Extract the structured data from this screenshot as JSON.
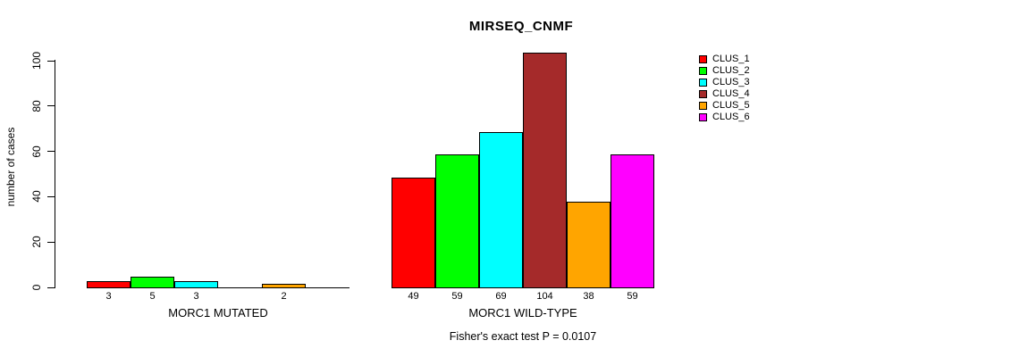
{
  "chart_data": {
    "type": "bar",
    "title": "MIRSEQ_CNMF",
    "ylabel": "number of cases",
    "xlabel": "",
    "ylim": [
      0,
      100
    ],
    "yticks": [
      0,
      20,
      40,
      60,
      80,
      100
    ],
    "grid": false,
    "legend_position": "right",
    "series_labels": [
      "CLUS_1",
      "CLUS_2",
      "CLUS_3",
      "CLUS_4",
      "CLUS_5",
      "CLUS_6"
    ],
    "colors": [
      "#FF0000",
      "#00FF00",
      "#00FFFF",
      "#A52A2A",
      "#FFA500",
      "#FF00FF"
    ],
    "groups": [
      {
        "label": "MORC1 MUTATED",
        "values": [
          3,
          5,
          3,
          0,
          2,
          0
        ]
      },
      {
        "label": "MORC1 WILD-TYPE",
        "values": [
          49,
          59,
          69,
          104,
          38,
          59
        ]
      }
    ],
    "bar_value_labels": [
      [
        "3",
        "5",
        "3",
        "",
        "2",
        ""
      ],
      [
        "49",
        "59",
        "69",
        "104",
        "38",
        "59"
      ]
    ],
    "annotation": "Fisher's exact test P = 0.0107"
  }
}
